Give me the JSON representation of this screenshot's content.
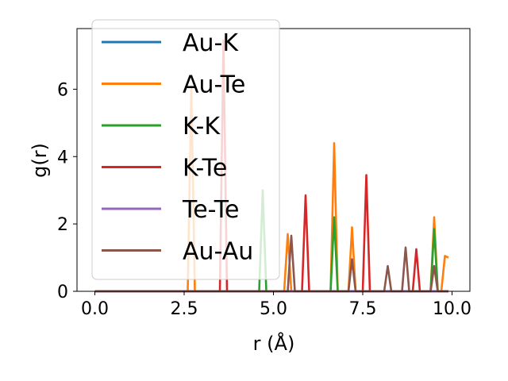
{
  "chart_data": {
    "type": "line",
    "xlabel": "r (Å)",
    "ylabel": "g(r)",
    "xlim": [
      -0.5,
      10.5
    ],
    "ylim": [
      0,
      7.8
    ],
    "xticks": [
      0.0,
      2.5,
      5.0,
      7.5,
      10.0
    ],
    "xtick_labels": [
      "0.0",
      "2.5",
      "5.0",
      "7.5",
      "10.0"
    ],
    "yticks": [
      0,
      2,
      4,
      6
    ],
    "ytick_labels": [
      "0",
      "2",
      "4",
      "6"
    ],
    "grid": false,
    "legend_position": "upper-left",
    "series": [
      {
        "name": "Au-K",
        "color": "#1f77b4",
        "x": [
          0,
          9.9
        ],
        "y": [
          0,
          0
        ]
      },
      {
        "name": "Au-Te",
        "color": "#ff7f0e",
        "x": [
          0,
          2.6,
          2.7,
          2.8,
          3.0,
          5.3,
          5.4,
          5.5,
          6.6,
          6.7,
          6.8,
          7.1,
          7.2,
          7.3,
          9.4,
          9.5,
          9.6,
          9.7,
          9.8,
          9.9
        ],
        "y": [
          0,
          0,
          6.1,
          0,
          0,
          0,
          1.7,
          0,
          0,
          4.4,
          0,
          0,
          1.9,
          0,
          0,
          2.2,
          0,
          0,
          1.05,
          1.0
        ]
      },
      {
        "name": "K-K",
        "color": "#2ca02c",
        "x": [
          0,
          4.6,
          4.7,
          4.8,
          6.6,
          6.7,
          6.8,
          9.4,
          9.5,
          9.6,
          9.9
        ],
        "y": [
          0,
          0,
          3.0,
          0,
          0,
          2.2,
          0,
          0,
          1.85,
          0,
          0
        ]
      },
      {
        "name": "K-Te",
        "color": "#d62728",
        "x": [
          0,
          3.5,
          3.6,
          3.7,
          5.8,
          5.9,
          6.0,
          7.5,
          7.6,
          7.7,
          8.9,
          9.0,
          9.1,
          9.9
        ],
        "y": [
          0,
          0,
          7.45,
          0,
          0,
          2.85,
          0,
          0,
          3.45,
          0,
          0,
          1.25,
          0,
          0
        ]
      },
      {
        "name": "Te-Te",
        "color": "#9467bd",
        "x": [
          0,
          9.9
        ],
        "y": [
          0,
          0
        ]
      },
      {
        "name": "Au-Au",
        "color": "#8c564b",
        "x": [
          0,
          5.4,
          5.5,
          5.6,
          7.1,
          7.2,
          7.3,
          8.1,
          8.2,
          8.3,
          8.6,
          8.7,
          8.8,
          9.4,
          9.5,
          9.6,
          9.9
        ],
        "y": [
          0,
          0,
          1.65,
          0,
          0,
          0.95,
          0,
          0,
          0.75,
          0,
          0,
          1.3,
          0,
          0,
          0.75,
          0,
          0
        ]
      }
    ]
  }
}
